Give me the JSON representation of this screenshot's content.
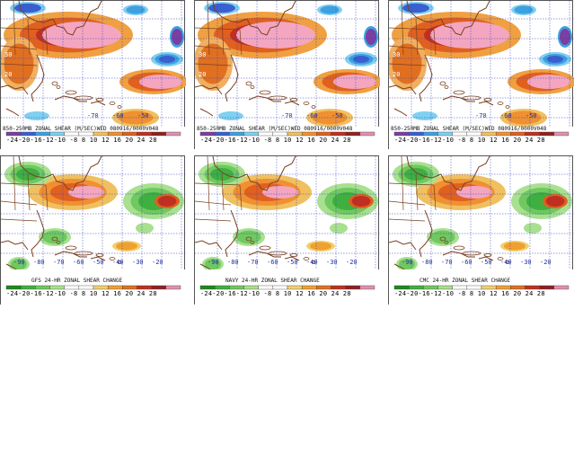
{
  "colorbar_ticks": "-24-20-16-12-10 -8  8  10 12  16  20  24  28",
  "panels": [
    {
      "caption": "850-250MB ZONAL SHEAR (M/SEC)WED 080916/0000V048",
      "lat_labels": [
        "30",
        "20",
        "10"
      ],
      "lon_labels": [
        "-70",
        "-60",
        "-50"
      ],
      "type": "shear"
    },
    {
      "caption": "850-250MB ZONAL SHEAR (M/SEC)WED 080916/0000V048",
      "lat_labels": [
        "30",
        "20",
        "10"
      ],
      "lon_labels": [
        "-70",
        "-60",
        "-50"
      ],
      "type": "shear"
    },
    {
      "caption": "850-250MB ZONAL SHEAR (M/SEC)WED 080916/0000V048",
      "lat_labels": [
        "30",
        "20",
        "10"
      ],
      "lon_labels": [
        "-70",
        "-60",
        "-50"
      ],
      "type": "shear"
    },
    {
      "caption": "GFS 24-HR ZONAL SHEAR CHANGE",
      "lat_labels": [
        "30",
        "20",
        "10"
      ],
      "lon_labels": [
        "-90",
        "-80",
        "-70",
        "-60",
        "-50",
        "-40",
        "-30",
        "-20"
      ],
      "type": "change"
    },
    {
      "caption": "NAVY 24-HR ZONAL SHEAR CHANGE",
      "lat_labels": [
        "30",
        "20",
        "10"
      ],
      "lon_labels": [
        "-90",
        "-80",
        "-70",
        "-60",
        "-50",
        "-40",
        "-30",
        "-20"
      ],
      "type": "change"
    },
    {
      "caption": "CMC 24-HR ZONAL SHEAR CHANGE",
      "lat_labels": [
        "30",
        "20",
        "10"
      ],
      "lon_labels": [
        "-90",
        "-80",
        "-70",
        "-60",
        "-50",
        "-40",
        "-30",
        "-20"
      ],
      "type": "change"
    }
  ],
  "colors": {
    "shear_bar": [
      "#7a3fa0",
      "#3a60d0",
      "#3fa0e0",
      "#80d0f0",
      "#ffffff",
      "#ffffff",
      "#f0c060",
      "#f09030",
      "#e06020",
      "#c03020",
      "#902020",
      "#e090b0"
    ],
    "change_bar": [
      "#1a8a1a",
      "#3fb03f",
      "#70c860",
      "#a8e090",
      "#ffffff",
      "#ffffff",
      "#f0d070",
      "#f0a030",
      "#e07020",
      "#c03020",
      "#902020",
      "#e090b0"
    ]
  }
}
